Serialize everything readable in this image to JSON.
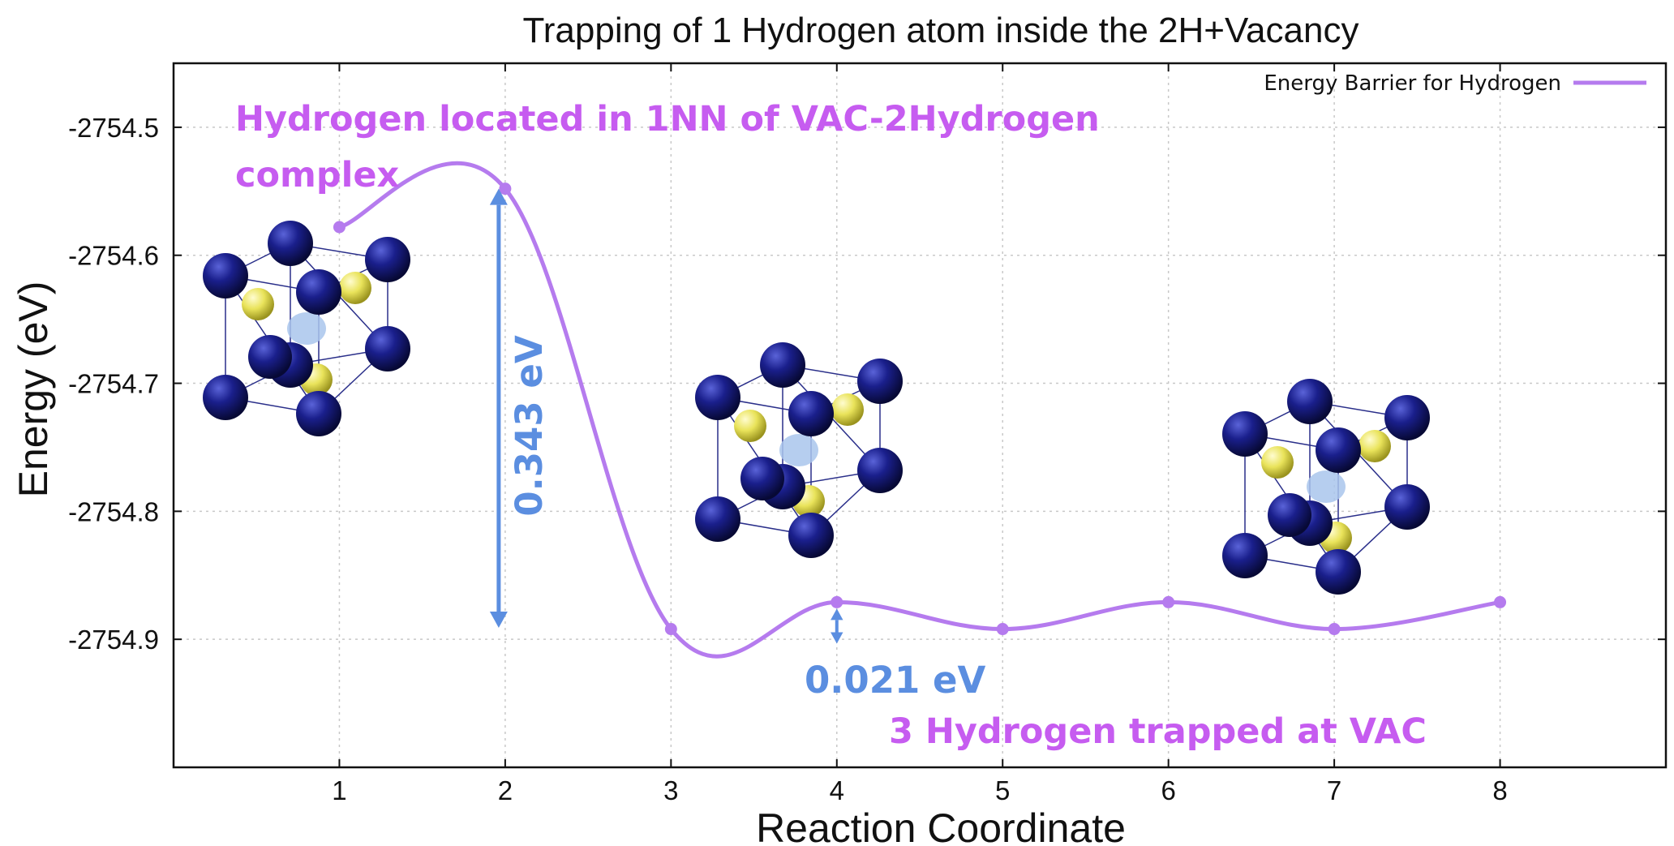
{
  "chart_data": {
    "type": "line",
    "title": "Trapping of 1 Hydrogen atom inside the 2H+Vacancy",
    "xlabel": "Reaction Coordinate",
    "ylabel": "Energy (eV)",
    "xlim": [
      0,
      9
    ],
    "ylim": [
      -2755.0,
      -2754.45
    ],
    "xticks": [
      1,
      2,
      3,
      4,
      5,
      6,
      7,
      8
    ],
    "yticks": [
      -2754.5,
      -2754.6,
      -2754.7,
      -2754.8,
      -2754.9
    ],
    "ytick_labels": [
      "-2754.5",
      "-2754.6",
      "-2754.7",
      "-2754.8",
      "-2754.9"
    ],
    "grid": true,
    "legend_position": "top-right",
    "series": [
      {
        "name": "Energy Barrier for Hydrogen",
        "color": "#b57bee",
        "x": [
          1,
          2,
          3,
          4,
          5,
          6,
          7,
          8
        ],
        "y": [
          -2754.578,
          -2754.548,
          -2754.892,
          -2754.871,
          -2754.892,
          -2754.871,
          -2754.892,
          -2754.871
        ]
      }
    ],
    "annotations": [
      {
        "id": "initial_state",
        "text": [
          "Hydrogen located in 1NN of VAC-2Hydrogen",
          "complex"
        ],
        "color": "#c65cf0"
      },
      {
        "id": "barrier_main",
        "text": "0.343 eV",
        "color": "#5b8ee0",
        "from": [
          2,
          -2754.548
        ],
        "to": [
          2,
          -2754.891
        ]
      },
      {
        "id": "barrier_small",
        "text": "0.021 eV",
        "color": "#5b8ee0",
        "from": [
          4,
          -2754.871
        ],
        "to": [
          4,
          -2754.892
        ]
      },
      {
        "id": "final_state",
        "text": "3 Hydrogen trapped at VAC",
        "color": "#c65cf0"
      }
    ]
  },
  "structures": {
    "metal_atom_color": "#1a1f8c",
    "hydrogen_atom_color": "#e9e35a",
    "vacancy_color": "#a9c6ec",
    "icon": "bcc-lattice-cell"
  }
}
